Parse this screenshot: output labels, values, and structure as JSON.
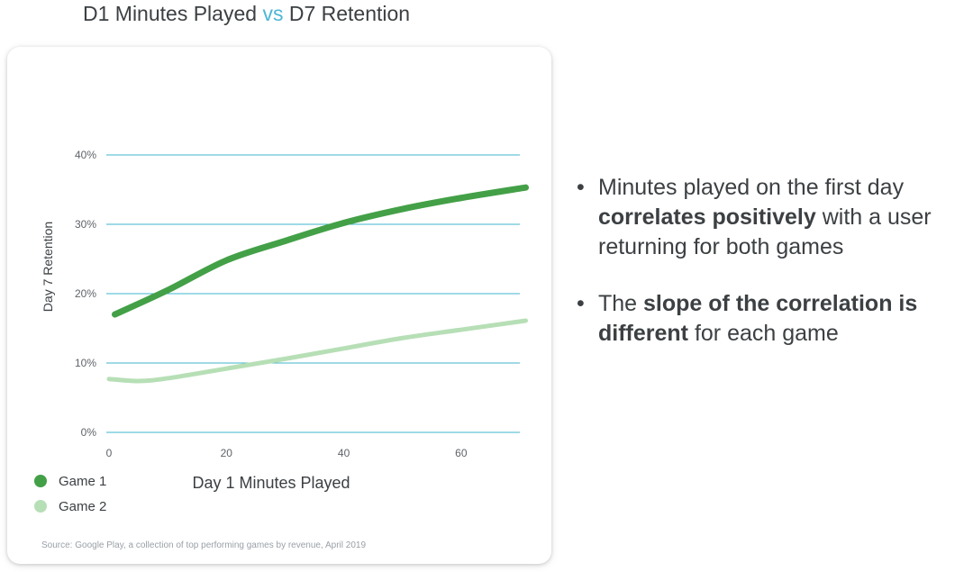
{
  "title": {
    "part1": "D1 Minutes Played",
    "vs": "vs",
    "part2": "D7 Retention"
  },
  "colors": {
    "game1": "#43a047",
    "game2": "#b7dfb6",
    "grid": "#3fb4cc",
    "vs": "#4db6d6"
  },
  "chart_data": {
    "type": "line",
    "xlabel": "Day 1 Minutes Played",
    "ylabel": "Day 7 Retention",
    "xlim": [
      0,
      70
    ],
    "ylim": [
      0,
      40
    ],
    "x_ticks": [
      "0",
      "20",
      "40",
      "60"
    ],
    "y_ticks": [
      "0%",
      "10%",
      "20%",
      "30%",
      "40%"
    ],
    "grid": true,
    "legend_position": "bottom-left",
    "series": [
      {
        "name": "Game 1",
        "x": [
          1,
          10,
          20,
          30,
          40,
          50,
          60,
          71
        ],
        "y": [
          17,
          20.5,
          24.8,
          27.6,
          30.2,
          32.2,
          33.8,
          35.3
        ]
      },
      {
        "name": "Game 2",
        "x": [
          0,
          5,
          10,
          20,
          30,
          40,
          50,
          60,
          71
        ],
        "y": [
          7.7,
          7.4,
          7.8,
          9.2,
          10.6,
          12.1,
          13.6,
          14.8,
          16.1
        ]
      }
    ]
  },
  "source": "Source: Google Play, a collection of top performing games by revenue, April 2019",
  "bullets": [
    {
      "pre": "Minutes played on the first day ",
      "bold": "correlates positively",
      "post": " with a user returning for both games"
    },
    {
      "pre": "The ",
      "bold": "slope of the correlation is different",
      "post": " for each game"
    }
  ]
}
